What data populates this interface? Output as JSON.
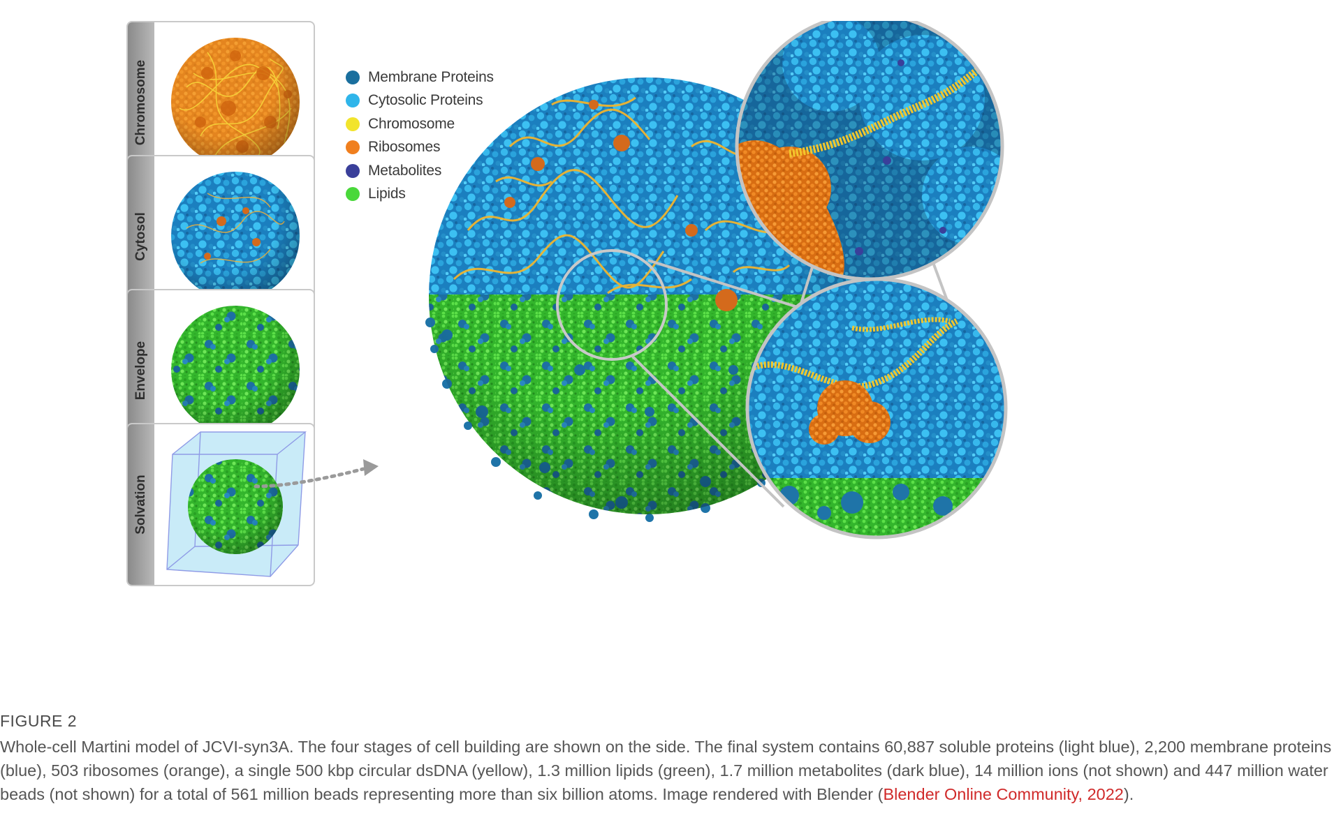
{
  "stages": [
    {
      "label": "Chromosome"
    },
    {
      "label": "Cytosol"
    },
    {
      "label": "Envelope"
    },
    {
      "label": "Solvation"
    }
  ],
  "legend": [
    {
      "label": "Membrane Proteins",
      "color": "#1a6f9e"
    },
    {
      "label": "Cytosolic Proteins",
      "color": "#2fb5ea"
    },
    {
      "label": "Chromosome",
      "color": "#f2e42c"
    },
    {
      "label": "Ribosomes",
      "color": "#f07f1e"
    },
    {
      "label": "Metabolites",
      "color": "#3a3f9a"
    },
    {
      "label": "Lipids",
      "color": "#49d83a"
    }
  ],
  "caption": {
    "heading": "FIGURE 2",
    "body": "Whole-cell Martini model of JCVI-syn3A. The four stages of cell building are shown on the side. The final system contains 60,887 soluble proteins (light blue), 2,200 membrane proteins (blue), 503 ribosomes (orange), a single 500 kbp circular dsDNA (yellow), 1.3 million lipids (green), 1.7 million metabolites (dark blue), 14 million ions (not shown) and 447 million water beads (not shown) for a total of 561 million beads representing more than six billion atoms. Image rendered with Blender (",
    "link": "Blender Online Community, 2022",
    "tail": ")."
  }
}
